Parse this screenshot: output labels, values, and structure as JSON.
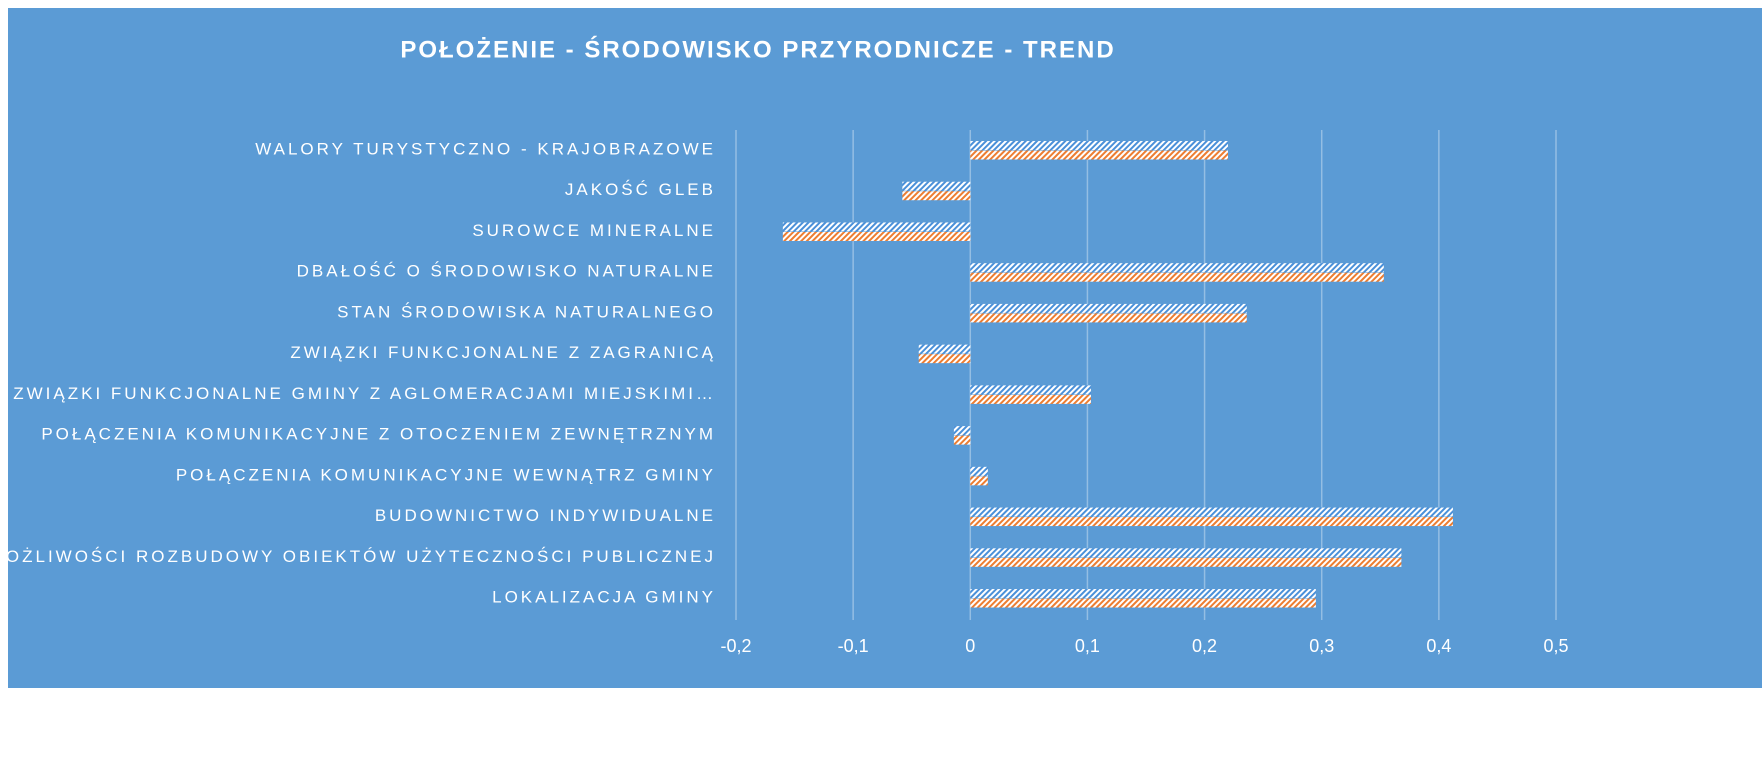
{
  "chart_data": {
    "type": "barh",
    "title": "POŁOŻENIE - ŚRODOWISKO PRZYRODNICZE - TREND",
    "categories": [
      "WALORY TURYSTYCZNO - KRAJOBRAZOWE",
      "JAKOŚĆ GLEB",
      "SUROWCE MINERALNE",
      "DBAŁOŚĆ O ŚRODOWISKO NATURALNE",
      "STAN ŚRODOWISKA NATURALNEGO",
      "ZWIĄZKI FUNKCJONALNE Z ZAGRANICĄ",
      "ZWIĄZKI FUNKCJONALNE GMINY Z AGLOMERACJAMI MIEJSKIMI…",
      "POŁĄCZENIA KOMUNIKACYJNE Z OTOCZENIEM ZEWNĘTRZNYM",
      "POŁĄCZENIA KOMUNIKACYJNE WEWNĄTRZ GMINY",
      "BUDOWNICTWO INDYWIDUALNE",
      "MOŻLIWOŚCI ROZBUDOWY OBIEKTÓW UŻYTECZNOŚCI PUBLICZNEJ",
      "LOKALIZACJA GMINY"
    ],
    "series": [
      {
        "color": "#4a90d9",
        "values": [
          0.22,
          -0.058,
          -0.16,
          0.353,
          0.236,
          -0.044,
          0.103,
          -0.014,
          0.015,
          0.412,
          0.368,
          0.295
        ]
      },
      {
        "color": "#ed7d31",
        "values": [
          0.22,
          -0.058,
          -0.16,
          0.353,
          0.236,
          -0.044,
          0.103,
          -0.014,
          0.015,
          0.412,
          0.368,
          0.295
        ]
      }
    ],
    "xlim": [
      -0.2,
      0.5
    ],
    "xticks": [
      {
        "value": -0.2,
        "label": "-0,2"
      },
      {
        "value": -0.1,
        "label": "-0,1"
      },
      0,
      {
        "value": 0.1,
        "label": "0,1"
      },
      {
        "value": 0.2,
        "label": "0,2"
      },
      {
        "value": 0.3,
        "label": "0,3"
      },
      {
        "value": 0.4,
        "label": "0,4"
      },
      {
        "value": 0.5,
        "label": "0,5"
      }
    ],
    "grid": true
  }
}
